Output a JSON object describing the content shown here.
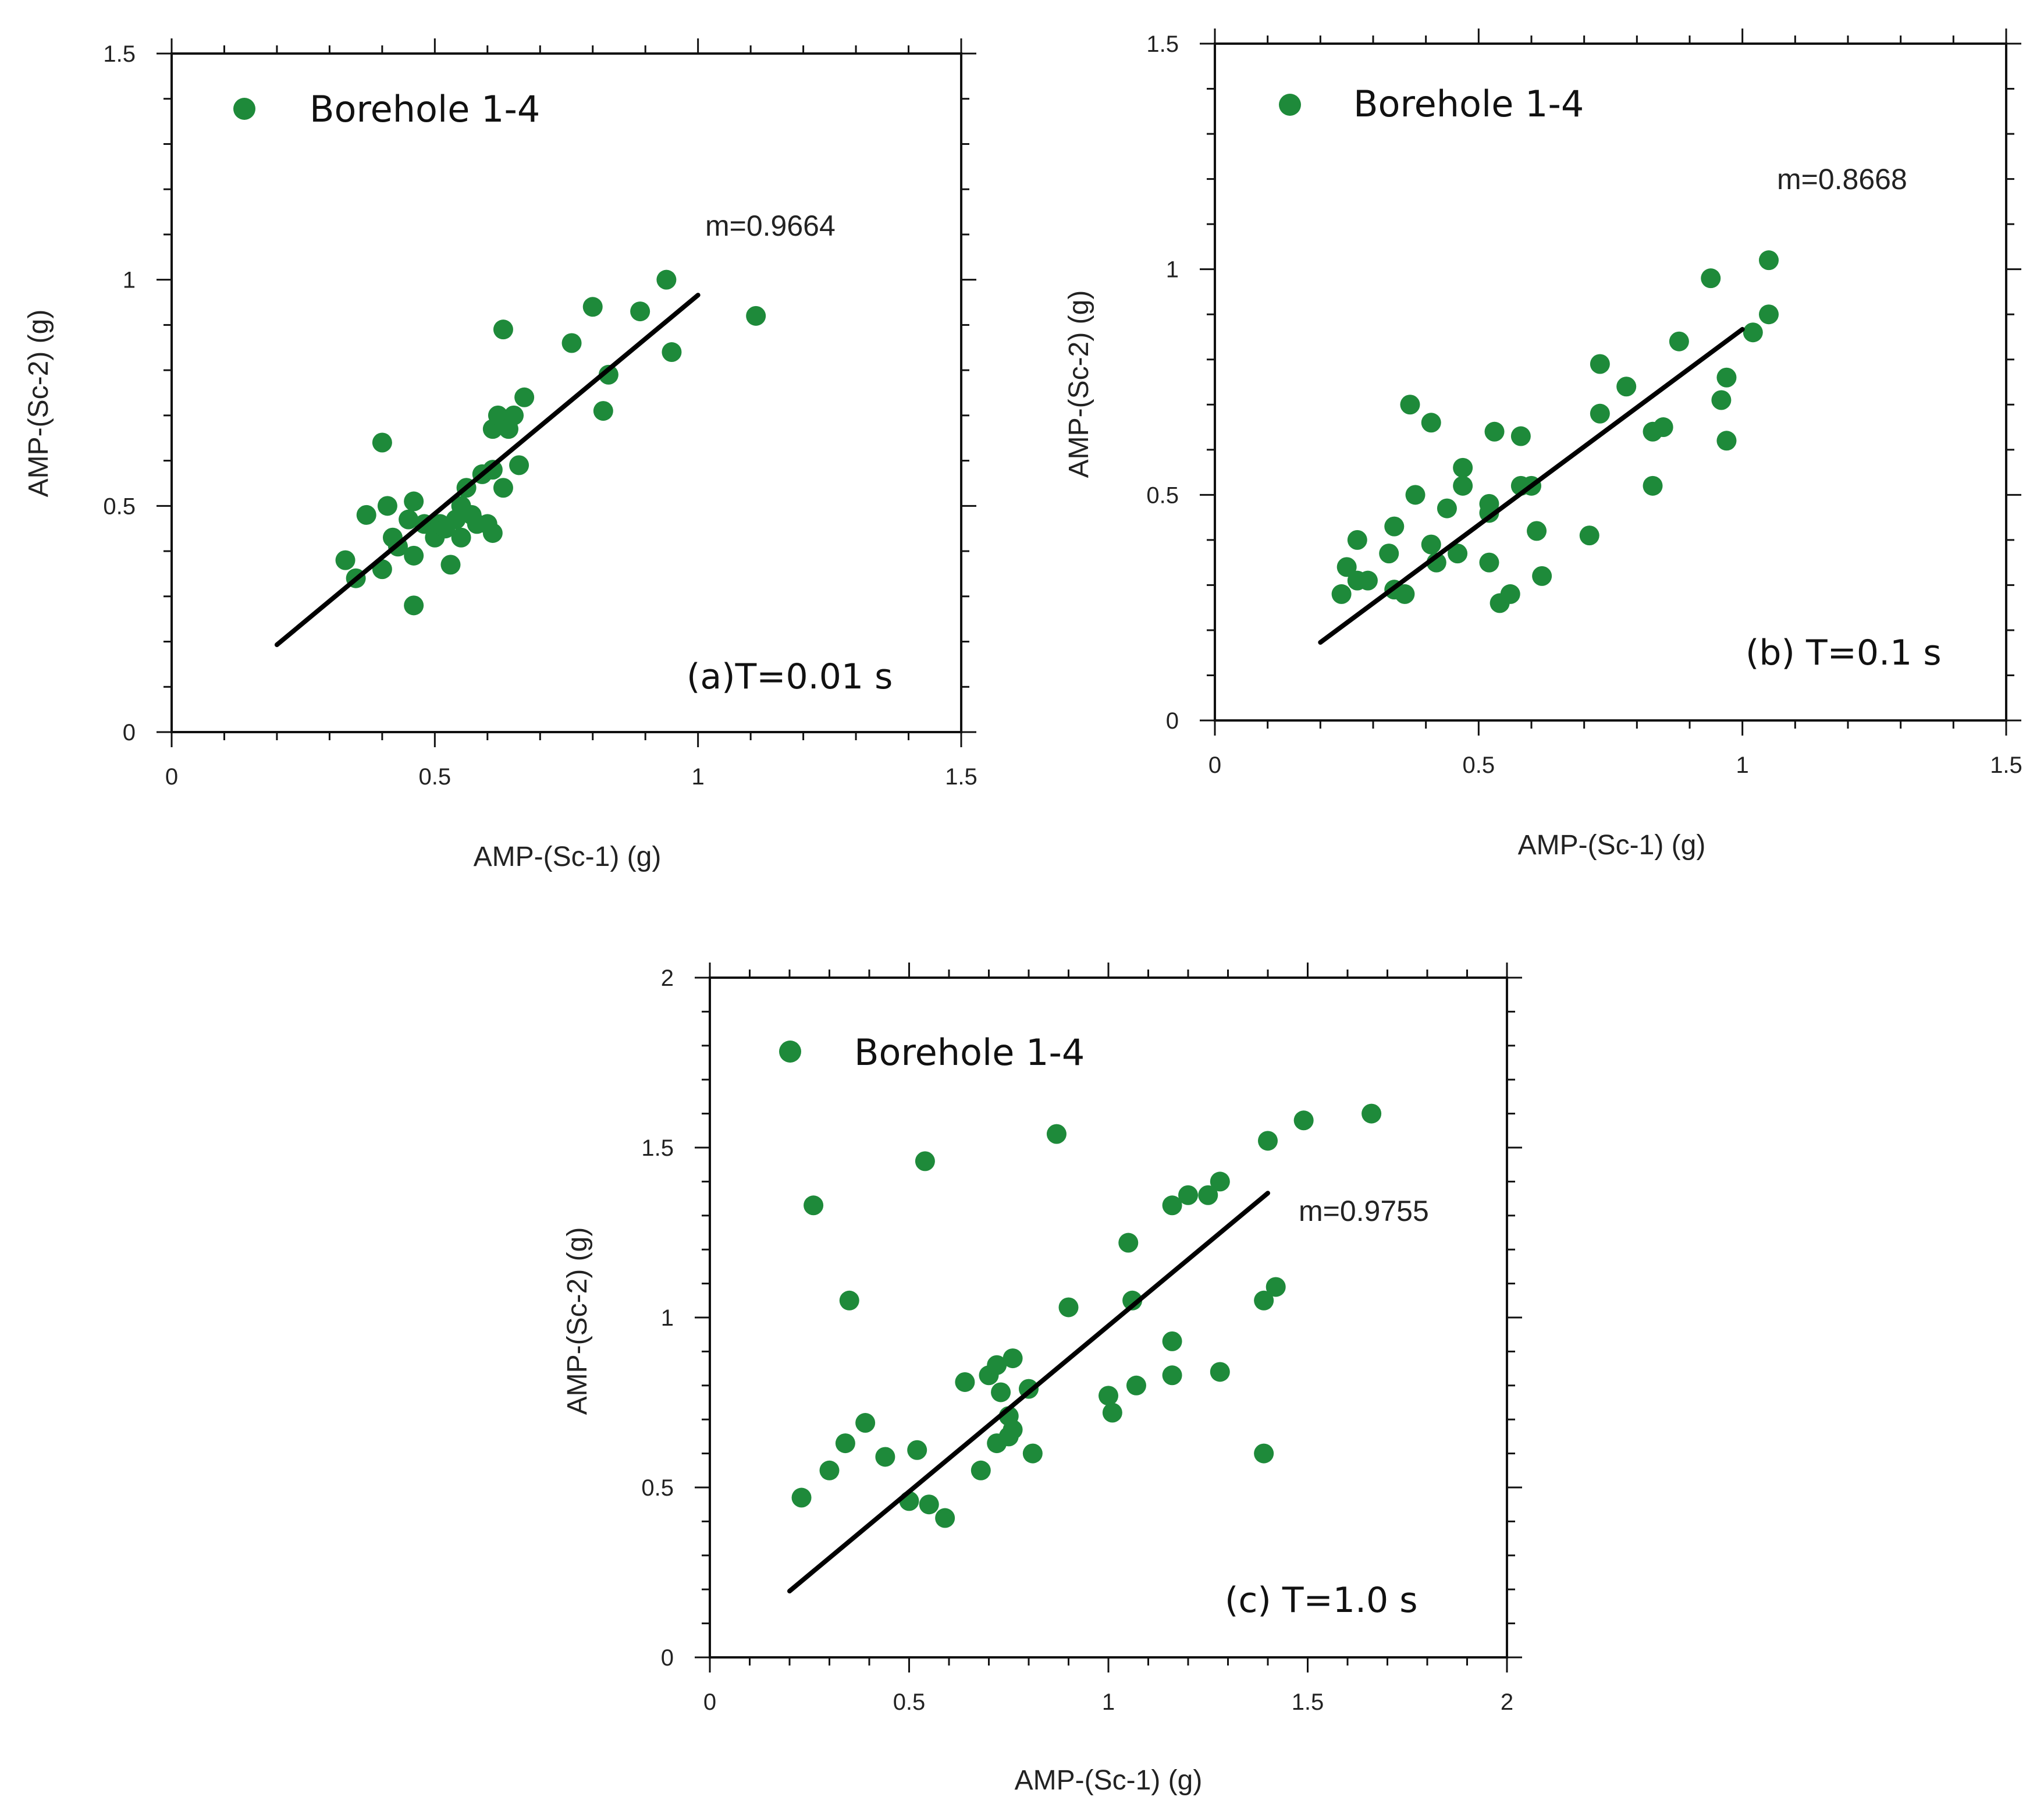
{
  "colors": {
    "point": "#1e8a3a",
    "line": "#000000",
    "frame": "#111111"
  },
  "chart_data": [
    {
      "type": "scatter",
      "panel_label": "(a)T=0.01 s",
      "xlabel": "AMP-(Sc-1)  (g)",
      "ylabel": "AMP-(Sc-2) (g)",
      "xlim": [
        0,
        1.5
      ],
      "ylim": [
        0,
        1.5
      ],
      "xticks": [
        0,
        0.5,
        1,
        1.5
      ],
      "yticks": [
        0,
        0.5,
        1,
        1.5
      ],
      "xtick_labels": [
        "0",
        "0.5",
        "1",
        "1.5"
      ],
      "ytick_labels": [
        "0",
        "0.5",
        "1",
        "1.5"
      ],
      "legend": "Borehole 1-4",
      "slope_label": "m=0.9664",
      "fit_line": {
        "x": [
          0.2,
          1.0
        ],
        "y": [
          0.193,
          0.966
        ]
      },
      "points": [
        [
          0.33,
          0.38
        ],
        [
          0.35,
          0.34
        ],
        [
          0.37,
          0.48
        ],
        [
          0.4,
          0.36
        ],
        [
          0.4,
          0.64
        ],
        [
          0.41,
          0.5
        ],
        [
          0.42,
          0.43
        ],
        [
          0.43,
          0.41
        ],
        [
          0.45,
          0.47
        ],
        [
          0.46,
          0.39
        ],
        [
          0.46,
          0.51
        ],
        [
          0.46,
          0.28
        ],
        [
          0.48,
          0.46
        ],
        [
          0.5,
          0.43
        ],
        [
          0.51,
          0.46
        ],
        [
          0.52,
          0.45
        ],
        [
          0.53,
          0.37
        ],
        [
          0.54,
          0.47
        ],
        [
          0.55,
          0.43
        ],
        [
          0.55,
          0.5
        ],
        [
          0.56,
          0.54
        ],
        [
          0.57,
          0.48
        ],
        [
          0.58,
          0.46
        ],
        [
          0.59,
          0.57
        ],
        [
          0.6,
          0.46
        ],
        [
          0.61,
          0.44
        ],
        [
          0.61,
          0.58
        ],
        [
          0.61,
          0.67
        ],
        [
          0.62,
          0.7
        ],
        [
          0.63,
          0.54
        ],
        [
          0.63,
          0.89
        ],
        [
          0.64,
          0.67
        ],
        [
          0.65,
          0.7
        ],
        [
          0.66,
          0.59
        ],
        [
          0.67,
          0.74
        ],
        [
          0.76,
          0.86
        ],
        [
          0.8,
          0.94
        ],
        [
          0.82,
          0.71
        ],
        [
          0.83,
          0.79
        ],
        [
          0.89,
          0.93
        ],
        [
          0.94,
          1.0
        ],
        [
          0.95,
          0.84
        ],
        [
          1.11,
          0.92
        ]
      ]
    },
    {
      "type": "scatter",
      "panel_label": "(b) T=0.1 s",
      "xlabel": "AMP-(Sc-1)  (g)",
      "ylabel": "AMP-(Sc-2) (g)",
      "xlim": [
        0,
        1.5
      ],
      "ylim": [
        0,
        1.5
      ],
      "xticks": [
        0,
        0.5,
        1,
        1.5
      ],
      "yticks": [
        0,
        0.5,
        1,
        1.5
      ],
      "xtick_labels": [
        "0",
        "0.5",
        "1",
        "1.5"
      ],
      "ytick_labels": [
        "0",
        "0.5",
        "1",
        "1.5"
      ],
      "legend": "Borehole 1-4",
      "slope_label": "m=0.8668",
      "fit_line": {
        "x": [
          0.2,
          1.0
        ],
        "y": [
          0.173,
          0.867
        ]
      },
      "points": [
        [
          0.24,
          0.28
        ],
        [
          0.25,
          0.34
        ],
        [
          0.27,
          0.31
        ],
        [
          0.27,
          0.4
        ],
        [
          0.29,
          0.31
        ],
        [
          0.33,
          0.37
        ],
        [
          0.34,
          0.29
        ],
        [
          0.34,
          0.43
        ],
        [
          0.36,
          0.28
        ],
        [
          0.37,
          0.7
        ],
        [
          0.38,
          0.5
        ],
        [
          0.41,
          0.39
        ],
        [
          0.41,
          0.66
        ],
        [
          0.42,
          0.35
        ],
        [
          0.44,
          0.47
        ],
        [
          0.46,
          0.37
        ],
        [
          0.47,
          0.52
        ],
        [
          0.47,
          0.56
        ],
        [
          0.52,
          0.35
        ],
        [
          0.52,
          0.46
        ],
        [
          0.52,
          0.48
        ],
        [
          0.53,
          0.64
        ],
        [
          0.54,
          0.26
        ],
        [
          0.56,
          0.28
        ],
        [
          0.58,
          0.63
        ],
        [
          0.58,
          0.52
        ],
        [
          0.6,
          0.52
        ],
        [
          0.61,
          0.42
        ],
        [
          0.62,
          0.32
        ],
        [
          0.71,
          0.41
        ],
        [
          0.73,
          0.68
        ],
        [
          0.73,
          0.79
        ],
        [
          0.78,
          0.74
        ],
        [
          0.83,
          0.52
        ],
        [
          0.83,
          0.64
        ],
        [
          0.85,
          0.65
        ],
        [
          0.88,
          0.84
        ],
        [
          0.94,
          0.98
        ],
        [
          0.96,
          0.71
        ],
        [
          0.97,
          0.62
        ],
        [
          0.97,
          0.76
        ],
        [
          1.02,
          0.86
        ],
        [
          1.05,
          0.9
        ],
        [
          1.05,
          1.02
        ]
      ]
    },
    {
      "type": "scatter",
      "panel_label": "(c)  T=1.0 s",
      "xlabel": "AMP-(Sc-1)  (g)",
      "ylabel": "AMP-(Sc-2) (g)",
      "xlim": [
        0,
        2
      ],
      "ylim": [
        0,
        2
      ],
      "xticks": [
        0,
        0.5,
        1,
        1.5,
        2
      ],
      "yticks": [
        0,
        0.5,
        1,
        1.5,
        2
      ],
      "xtick_labels": [
        "0",
        "0.5",
        "1",
        "1.5",
        "2"
      ],
      "ytick_labels": [
        "0",
        "0.5",
        "1",
        "1.5",
        "2"
      ],
      "legend": "Borehole 1-4",
      "slope_label": "m=0.9755",
      "fit_line": {
        "x": [
          0.2,
          1.4
        ],
        "y": [
          0.195,
          1.366
        ]
      },
      "points": [
        [
          0.23,
          0.47
        ],
        [
          0.26,
          1.33
        ],
        [
          0.3,
          0.55
        ],
        [
          0.34,
          0.63
        ],
        [
          0.35,
          1.05
        ],
        [
          0.39,
          0.69
        ],
        [
          0.44,
          0.59
        ],
        [
          0.5,
          0.46
        ],
        [
          0.52,
          0.61
        ],
        [
          0.54,
          1.46
        ],
        [
          0.55,
          0.45
        ],
        [
          0.59,
          0.41
        ],
        [
          0.64,
          0.81
        ],
        [
          0.68,
          0.55
        ],
        [
          0.7,
          0.83
        ],
        [
          0.72,
          0.63
        ],
        [
          0.72,
          0.86
        ],
        [
          0.73,
          0.78
        ],
        [
          0.75,
          0.65
        ],
        [
          0.75,
          0.71
        ],
        [
          0.76,
          0.67
        ],
        [
          0.76,
          0.88
        ],
        [
          0.8,
          0.79
        ],
        [
          0.81,
          0.6
        ],
        [
          0.87,
          1.54
        ],
        [
          0.9,
          1.03
        ],
        [
          1.0,
          0.77
        ],
        [
          1.01,
          0.72
        ],
        [
          1.05,
          1.22
        ],
        [
          1.06,
          1.05
        ],
        [
          1.07,
          0.8
        ],
        [
          1.16,
          0.83
        ],
        [
          1.16,
          0.93
        ],
        [
          1.16,
          1.33
        ],
        [
          1.2,
          1.36
        ],
        [
          1.25,
          1.36
        ],
        [
          1.28,
          0.84
        ],
        [
          1.28,
          1.4
        ],
        [
          1.39,
          0.6
        ],
        [
          1.39,
          1.05
        ],
        [
          1.4,
          1.52
        ],
        [
          1.42,
          1.09
        ],
        [
          1.49,
          1.58
        ],
        [
          1.66,
          1.6
        ]
      ]
    }
  ]
}
